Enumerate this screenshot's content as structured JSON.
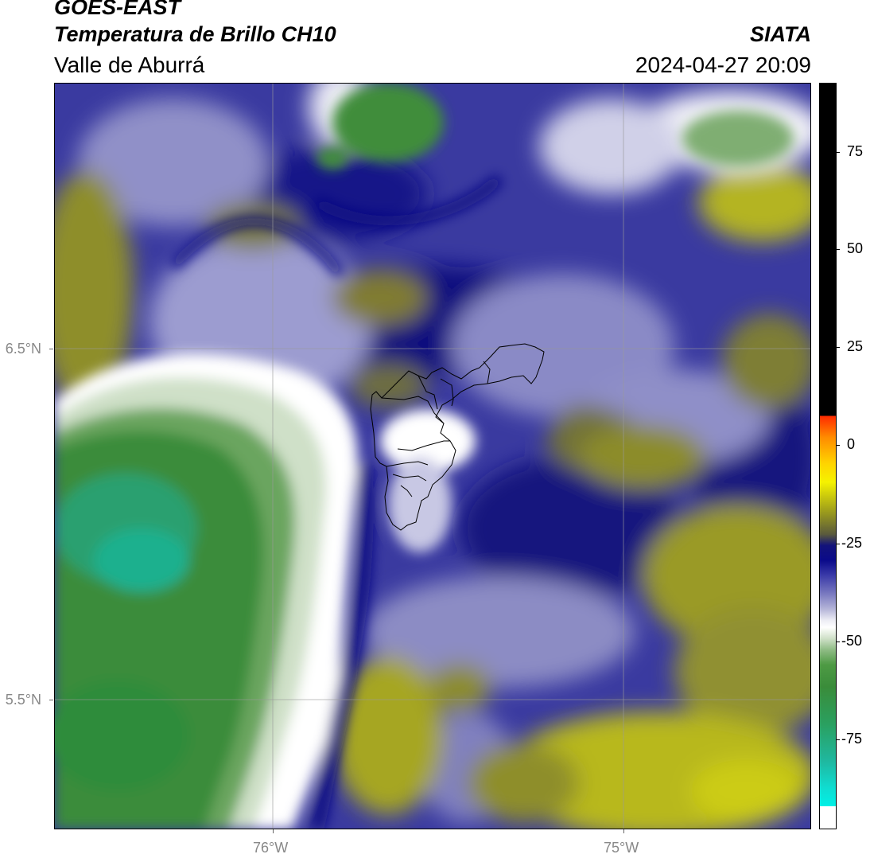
{
  "header": {
    "satellite": "GOES-EAST",
    "product": "Temperatura de Brillo CH10",
    "region": "Valle de Aburrá",
    "institution": "SIATA",
    "datetime": "2024-04-27 20:09"
  },
  "map": {
    "lat_labels": [
      "6.5°N",
      "5.5°N"
    ],
    "lon_labels": [
      "76°W",
      "75°W"
    ],
    "gridlines": true,
    "colors": {
      "cold_green": "#3d8d3a",
      "teal": "#2aa070",
      "white_cloud": "#ffffff",
      "lavender": "#9c9ccc",
      "navy": "#0a0a82",
      "olive": "#8c8c2a",
      "yellow_olive": "#c2c21c"
    }
  },
  "colorbar": {
    "ticks": [
      "75",
      "50",
      "25",
      "0",
      "-25",
      "-50",
      "-75"
    ],
    "palette": [
      "#000000",
      "#ff2a00",
      "#ffd400",
      "#f5f200",
      "#9b9b1c",
      "#13137a",
      "#7a7ac0",
      "#ffffff",
      "#4e9a44",
      "#2aa060",
      "#00f0e6"
    ]
  }
}
